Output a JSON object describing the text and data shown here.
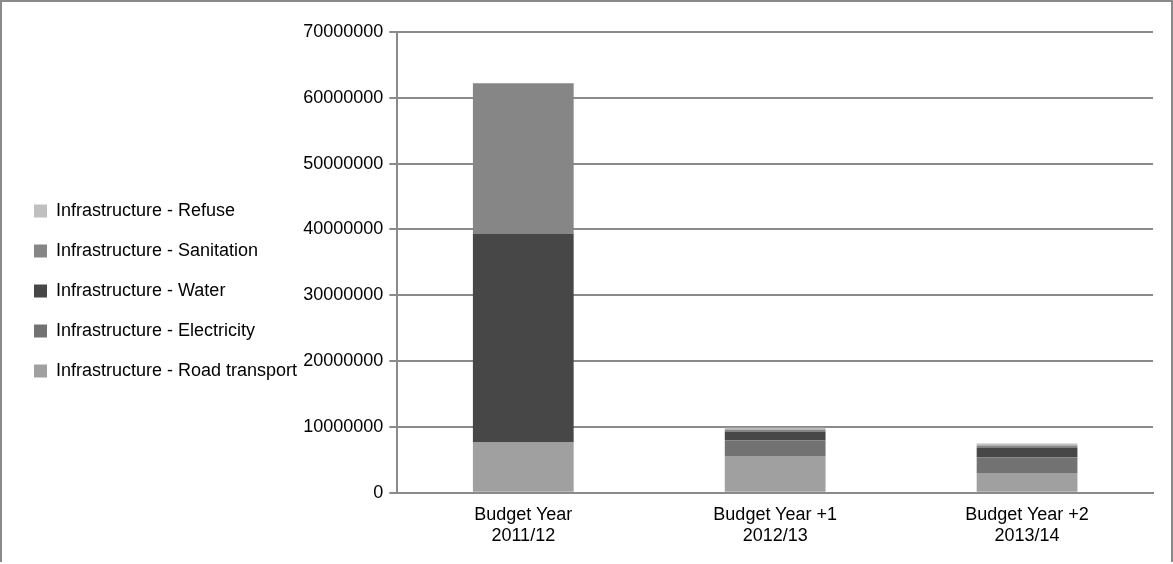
{
  "chart_data": {
    "type": "bar",
    "stacked": true,
    "categories": [
      "Budget Year 2011/12",
      "Budget Year +1 2012/13",
      "Budget Year +2 2013/14"
    ],
    "series": [
      {
        "name": "Infrastructure - Road transport",
        "color": "#a0a0a0",
        "values": [
          7700000,
          5600000,
          3000000
        ]
      },
      {
        "name": "Infrastructure - Electricity",
        "color": "#727272",
        "values": [
          0,
          2400000,
          2400000
        ]
      },
      {
        "name": "Infrastructure - Water",
        "color": "#474747",
        "values": [
          31600000,
          1300000,
          1500000
        ]
      },
      {
        "name": "Infrastructure - Sanitation",
        "color": "#868686",
        "values": [
          22900000,
          300000,
          300000
        ]
      },
      {
        "name": "Infrastructure - Refuse",
        "color": "#c0c0c0",
        "values": [
          0,
          300000,
          300000
        ]
      }
    ],
    "ylim": [
      0,
      70000000
    ],
    "yticks": [
      0,
      10000000,
      20000000,
      30000000,
      40000000,
      50000000,
      60000000,
      70000000
    ],
    "grid": "y",
    "legend": "left"
  }
}
